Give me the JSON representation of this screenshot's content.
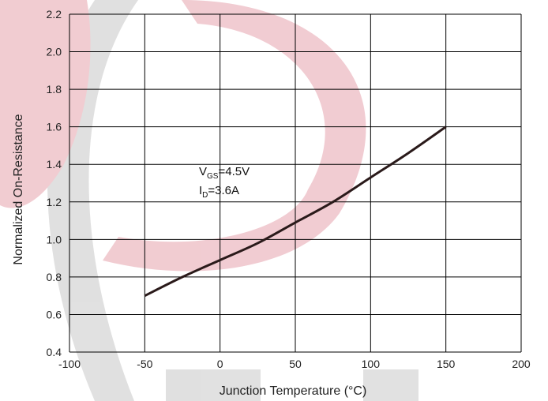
{
  "chart_data": {
    "type": "line",
    "xlabel": "Junction Temperature (°C)",
    "ylabel": "Normalized On-Resistance",
    "xlim": [
      -100,
      200
    ],
    "ylim": [
      0.4,
      2.2
    ],
    "x_ticks": [
      "-100",
      "-50",
      "0",
      "50",
      "100",
      "150",
      "200"
    ],
    "y_ticks": [
      "0.4",
      "0.6",
      "0.8",
      "1.0",
      "1.2",
      "1.4",
      "1.6",
      "1.8",
      "2.0",
      "2.2"
    ],
    "grid": true,
    "series": [
      {
        "x": [
          -50,
          -25,
          0,
          25,
          50,
          75,
          100,
          125,
          150
        ],
        "y": [
          0.7,
          0.8,
          0.89,
          0.98,
          1.09,
          1.2,
          1.33,
          1.46,
          1.6
        ]
      }
    ],
    "annotations": {
      "vgs_main": "V",
      "vgs_sub": "GS",
      "vgs_value": "=4.5V",
      "id_main": "I",
      "id_sub": "D",
      "id_value": "=3.6A"
    },
    "colors": {
      "line": "#2a1a1a",
      "grid": "#000000",
      "watermark_red": "#e6a3ad",
      "watermark_gray": "#c8c8c8"
    }
  }
}
